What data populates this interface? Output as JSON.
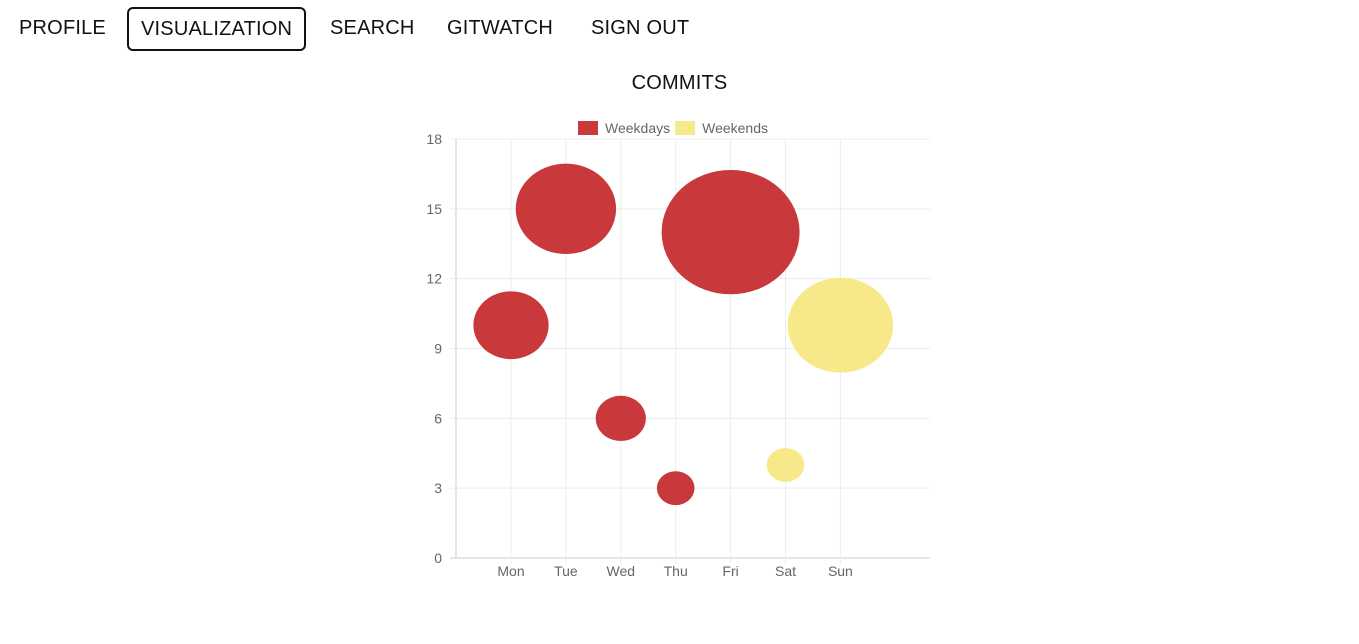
{
  "nav": {
    "items": [
      {
        "label": "PROFILE",
        "active": false
      },
      {
        "label": "VISUALIZATION",
        "active": true
      },
      {
        "label": "SEARCH",
        "active": false
      },
      {
        "label": "GITWATCH",
        "active": false
      },
      {
        "label": "SIGN OUT",
        "active": false
      }
    ]
  },
  "chart_data": {
    "type": "scatter",
    "title": "COMMITS",
    "categories": [
      "Mon",
      "Tue",
      "Wed",
      "Thu",
      "Fri",
      "Sat",
      "Sun"
    ],
    "ylim": [
      0,
      18
    ],
    "yticks": [
      0,
      3,
      6,
      9,
      12,
      15,
      18
    ],
    "grid": true,
    "legend": "top-center",
    "series": [
      {
        "name": "Weekdays",
        "color": "#c9393b",
        "points": [
          {
            "x": "Mon",
            "y": 10,
            "r": 3
          },
          {
            "x": "Tue",
            "y": 15,
            "r": 4
          },
          {
            "x": "Wed",
            "y": 6,
            "r": 2
          },
          {
            "x": "Thu",
            "y": 3,
            "r": 1.5
          },
          {
            "x": "Fri",
            "y": 14,
            "r": 5.5
          }
        ]
      },
      {
        "name": "Weekends",
        "color": "#f7e98a",
        "points": [
          {
            "x": "Sat",
            "y": 4,
            "r": 1.5
          },
          {
            "x": "Sun",
            "y": 10,
            "r": 4.2
          }
        ]
      }
    ]
  }
}
